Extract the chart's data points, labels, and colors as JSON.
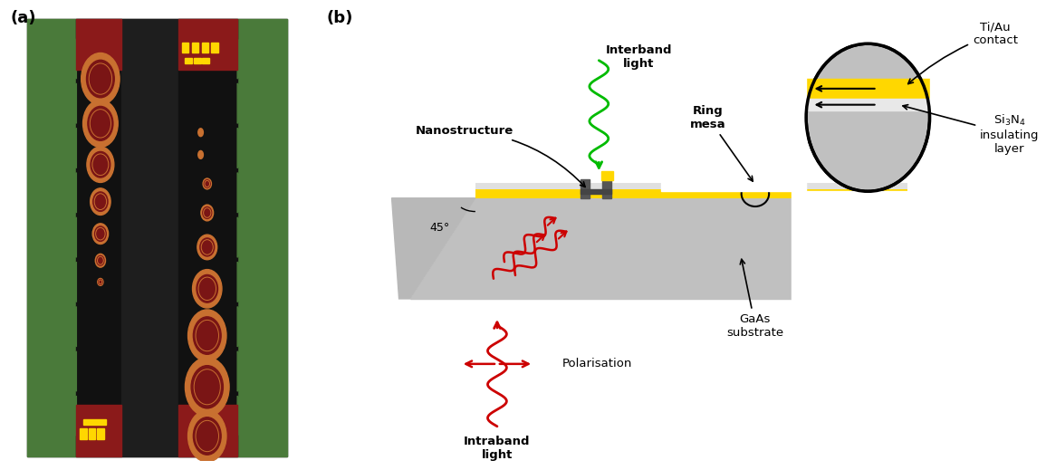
{
  "fig_width": 11.55,
  "fig_height": 5.19,
  "panel_a_label": "(a)",
  "panel_b_label": "(b)",
  "bg_color": "#ffffff",
  "substrate_color": "#c0c0c0",
  "substrate_dark": "#b0b0b0",
  "yellow_color": "#FFD700",
  "light_gray": "#e8e8e8",
  "dark_gray": "#606060",
  "green_wave_color": "#00cc00",
  "red_wave_color": "#cc0000",
  "annotation_labels": {
    "nanostructure": "Nanostructure",
    "interband": "Interband\nlight",
    "ring_mesa": "Ring\nmesa",
    "ti_au": "Ti/Au\ncontact",
    "si3n4": "Si$_3$N$_4$\ninsulating\nlayer",
    "polarisation": "Polarisation",
    "intraband": "Intraband\nlight",
    "gaas": "GaAs\nsubstrate",
    "angle": "45°"
  }
}
